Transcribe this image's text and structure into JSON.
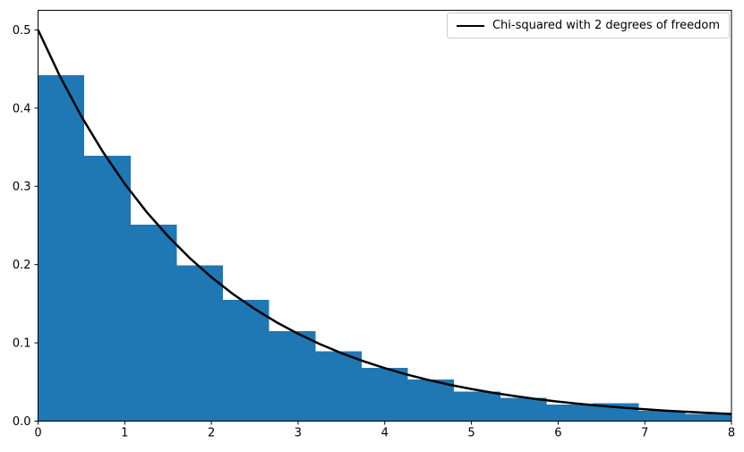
{
  "chart_data": {
    "type": "histogram_with_line",
    "title": "",
    "xlabel": "",
    "ylabel": "",
    "xlim": [
      0,
      8
    ],
    "ylim": [
      0,
      0.525
    ],
    "x_tick_values": [
      0,
      1,
      2,
      3,
      4,
      5,
      6,
      7,
      8
    ],
    "x_tick_labels": [
      "0",
      "1",
      "2",
      "3",
      "4",
      "5",
      "6",
      "7",
      "8"
    ],
    "y_tick_values": [
      0.0,
      0.1,
      0.2,
      0.3,
      0.4,
      0.5
    ],
    "y_tick_labels": [
      "0.0",
      "0.1",
      "0.2",
      "0.3",
      "0.4",
      "0.5"
    ],
    "grid": false,
    "background_color": "#ffffff",
    "axes_color": "#000000",
    "legend": {
      "position": "upper_right",
      "border_color": "#cccccc",
      "entries": [
        {
          "label": "Chi-squared with 2 degrees of freedom",
          "marker": "line",
          "color": "#000000",
          "linewidth": 2.5
        }
      ]
    },
    "histogram": {
      "color": "#1f77b4",
      "n_bins": 15,
      "bin_edges": [
        0,
        0.5333,
        1.0667,
        1.6,
        2.1333,
        2.6667,
        3.2,
        3.7333,
        4.2667,
        4.8,
        5.3333,
        5.8667,
        6.4,
        6.9333,
        7.4667,
        8
      ],
      "densities": [
        0.442,
        0.339,
        0.251,
        0.199,
        0.155,
        0.115,
        0.089,
        0.068,
        0.053,
        0.038,
        0.03,
        0.021,
        0.023,
        0.013,
        0.009
      ]
    },
    "curve": {
      "name": "Chi-squared with 2 degrees of freedom",
      "color": "#000000",
      "linewidth": 2.5,
      "formula": "y = 0.5 * exp(-x/2)",
      "x": [
        0,
        0.25,
        0.5,
        0.75,
        1.0,
        1.25,
        1.5,
        1.75,
        2.0,
        2.25,
        2.5,
        2.75,
        3.0,
        3.25,
        3.5,
        3.75,
        4.0,
        4.25,
        4.5,
        4.75,
        5.0,
        5.25,
        5.5,
        5.75,
        6.0,
        6.25,
        6.5,
        6.75,
        7.0,
        7.25,
        7.5,
        7.75,
        8.0
      ],
      "y": [
        0.5,
        0.4413,
        0.3894,
        0.3437,
        0.3033,
        0.2676,
        0.2362,
        0.2084,
        0.1839,
        0.1623,
        0.1433,
        0.1264,
        0.1116,
        0.0985,
        0.0869,
        0.0767,
        0.0677,
        0.0597,
        0.0527,
        0.0465,
        0.041,
        0.0362,
        0.032,
        0.0282,
        0.0249,
        0.022,
        0.0194,
        0.0171,
        0.0151,
        0.0133,
        0.0118,
        0.0104,
        0.0092
      ]
    }
  }
}
